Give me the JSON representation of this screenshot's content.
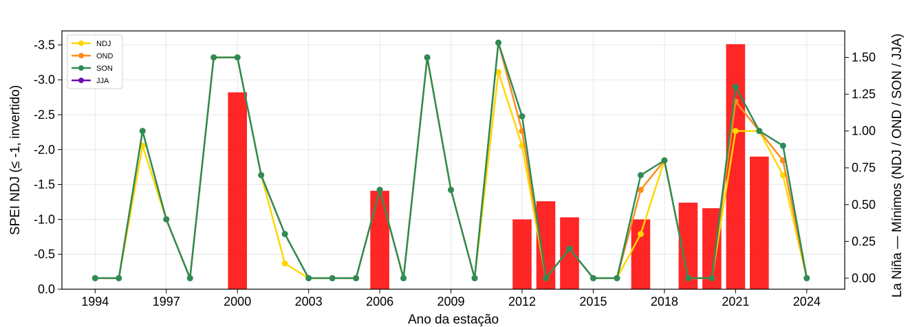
{
  "chart_data": {
    "type": "bar+line",
    "xlabel": "Ano da estação",
    "ylabel_left": "SPEI NDJ (≤ -1, invertido)",
    "ylabel_right": "La Niña — Mínimos (NDJ / OND / SON / JJA)",
    "xlim": [
      1992.6,
      2025.6
    ],
    "ylim_left": [
      0.0,
      -3.7
    ],
    "ylim_right": [
      -0.075,
      1.68
    ],
    "x_ticks": [
      1994,
      1997,
      2000,
      2003,
      2006,
      2009,
      2012,
      2015,
      2018,
      2021,
      2024
    ],
    "x_tick_labels": [
      "1994",
      "1997",
      "2000",
      "2003",
      "2006",
      "2009",
      "2012",
      "2015",
      "2018",
      "2021",
      "2024"
    ],
    "y_left_ticks": [
      0.0,
      -0.5,
      -1.0,
      -1.5,
      -2.0,
      -2.5,
      -3.0,
      -3.5
    ],
    "y_left_tick_labels": [
      "0.0",
      "-0.5",
      "-1.0",
      "-1.5",
      "-2.0",
      "-2.5",
      "-3.0",
      "-3.5"
    ],
    "y_right_ticks": [
      0.0,
      0.25,
      0.5,
      0.75,
      1.0,
      1.25,
      1.5
    ],
    "y_right_tick_labels": [
      "0.00",
      "0.25",
      "0.50",
      "0.75",
      "1.00",
      "1.25",
      "1.50"
    ],
    "grid": true,
    "legend_position": "top-left",
    "bars": {
      "axis": "left",
      "color": "#ff0000",
      "x": [
        2000,
        2006,
        2012,
        2013,
        2014,
        2017,
        2019,
        2020,
        2021,
        2022
      ],
      "values": [
        -2.82,
        -1.41,
        -1.0,
        -1.26,
        -1.03,
        -1.0,
        -1.24,
        -1.16,
        -3.51,
        -1.9
      ]
    },
    "series": [
      {
        "name": "NDJ",
        "axis": "right",
        "color": "#ffd700",
        "x": [
          1994,
          1995,
          1996,
          1997,
          1998,
          1999,
          2000,
          2001,
          2002,
          2003,
          2004,
          2005,
          2006,
          2007,
          2008,
          2009,
          2010,
          2011,
          2012,
          2013,
          2014,
          2015,
          2016,
          2017,
          2018,
          2019,
          2020,
          2021,
          2022,
          2023,
          2024
        ],
        "values": [
          0.0,
          0.0,
          0.9,
          0.4,
          0.0,
          1.5,
          1.5,
          0.7,
          0.1,
          0.0,
          0.0,
          0.0,
          0.6,
          0.0,
          1.5,
          0.6,
          0.0,
          1.4,
          0.9,
          0.0,
          0.2,
          0.0,
          0.0,
          0.3,
          0.8,
          0.0,
          0.0,
          1.0,
          1.0,
          0.7,
          0.0
        ]
      },
      {
        "name": "OND",
        "axis": "right",
        "color": "#ff8c1a",
        "x": [
          1994,
          1995,
          1996,
          1997,
          1998,
          1999,
          2000,
          2001,
          2002,
          2003,
          2004,
          2005,
          2006,
          2007,
          2008,
          2009,
          2010,
          2011,
          2012,
          2013,
          2014,
          2015,
          2016,
          2017,
          2018,
          2019,
          2020,
          2021,
          2022,
          2023,
          2024
        ],
        "values": [
          0.0,
          0.0,
          1.0,
          0.4,
          0.0,
          1.5,
          1.5,
          0.7,
          0.3,
          0.0,
          0.0,
          0.0,
          0.6,
          0.0,
          1.5,
          0.6,
          0.0,
          1.6,
          1.0,
          0.0,
          0.2,
          0.0,
          0.0,
          0.6,
          0.8,
          0.0,
          0.0,
          1.2,
          1.0,
          0.8,
          0.0
        ]
      },
      {
        "name": "SON",
        "axis": "right",
        "color": "#2e8b57",
        "x": [
          1994,
          1995,
          1996,
          1997,
          1998,
          1999,
          2000,
          2001,
          2002,
          2003,
          2004,
          2005,
          2006,
          2007,
          2008,
          2009,
          2010,
          2011,
          2012,
          2013,
          2014,
          2015,
          2016,
          2017,
          2018,
          2019,
          2020,
          2021,
          2022,
          2023,
          2024
        ],
        "values": [
          0.0,
          0.0,
          1.0,
          0.4,
          0.0,
          1.5,
          1.5,
          0.7,
          0.3,
          0.0,
          0.0,
          0.0,
          0.6,
          0.0,
          1.5,
          0.6,
          0.0,
          1.6,
          1.1,
          0.0,
          0.2,
          0.0,
          0.0,
          0.7,
          0.8,
          0.0,
          0.0,
          1.3,
          1.0,
          0.9,
          0.0
        ]
      },
      {
        "name": "JJA",
        "axis": "right",
        "color": "#6a0dad",
        "x": [],
        "values": []
      }
    ]
  }
}
